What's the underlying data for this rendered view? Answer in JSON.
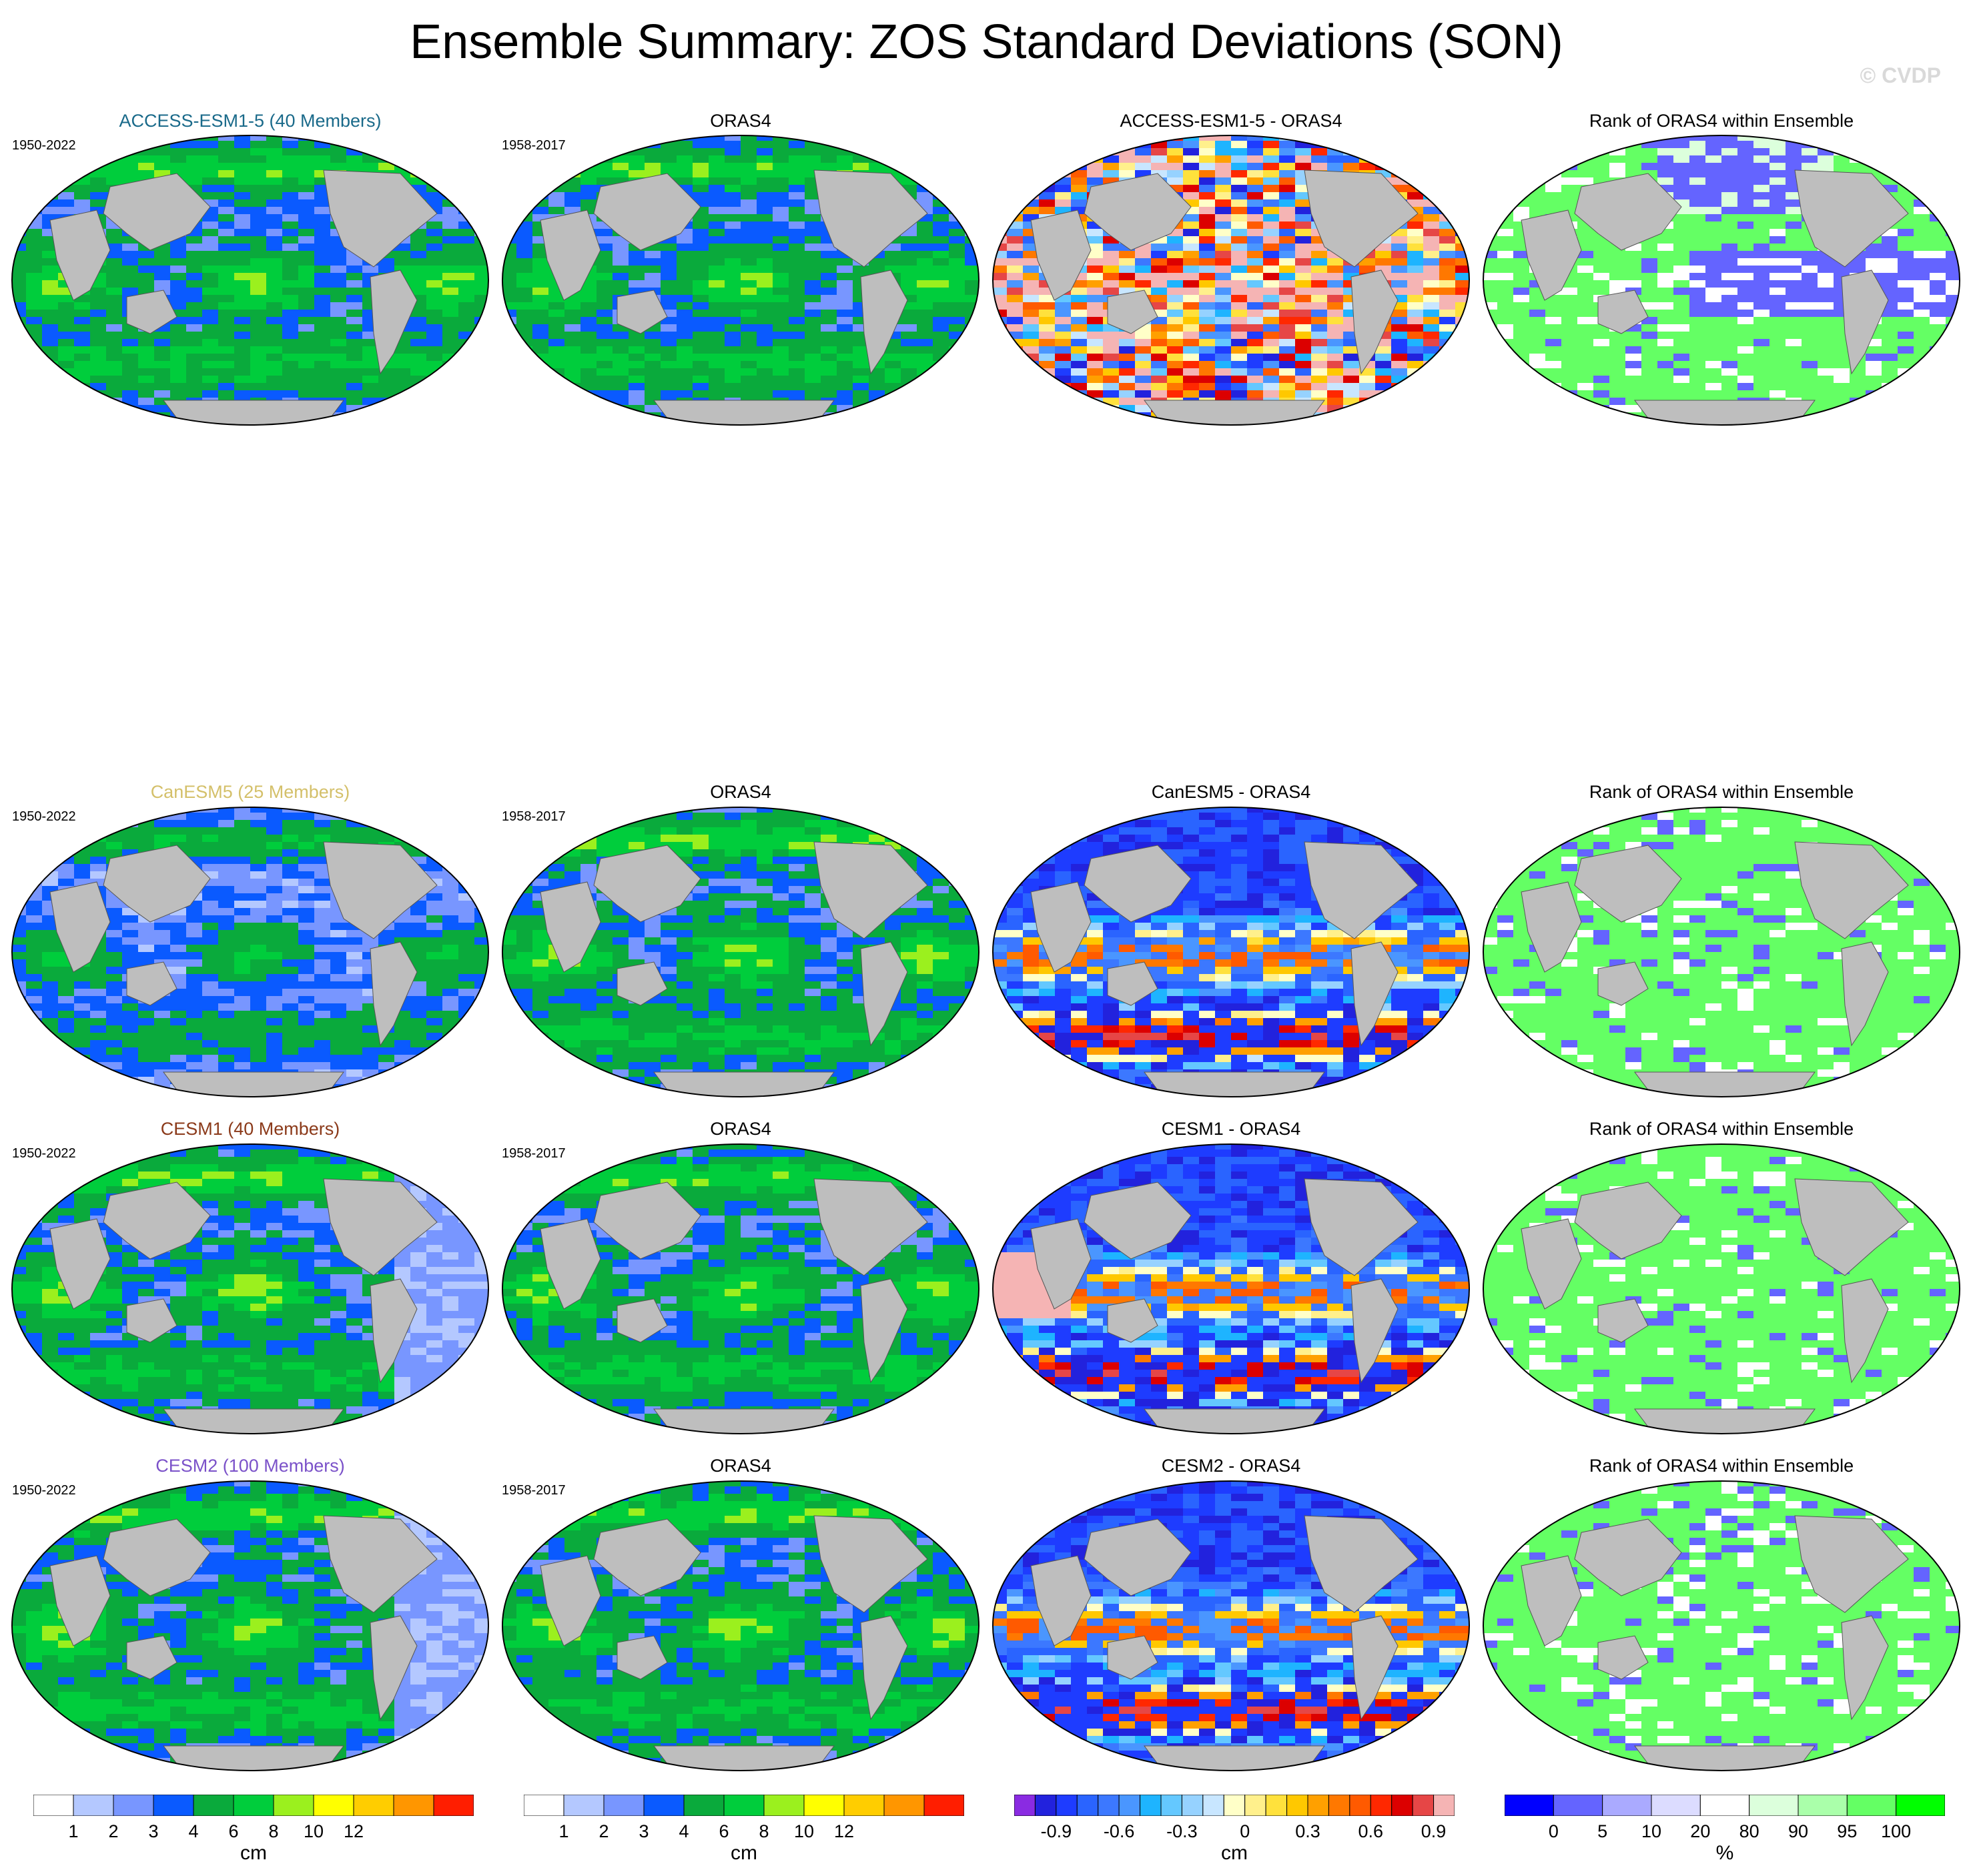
{
  "title": "Ensemble Summary: ZOS Standard Deviations (SON)",
  "copyright": "© CVDP",
  "colors": {
    "land": "#bebebe",
    "model_titles": [
      "#1a6a8a",
      "#d4c06a",
      "#8b3a1a",
      "#7b52c9"
    ]
  },
  "chart_data": {
    "type": "heatmap",
    "layout": "4 rows x 4 columns of global maps (Robinson-like projection)",
    "rows": [
      {
        "model_title": "ACCESS-ESM1-5 (40 Members)",
        "model_period": "1950-2022",
        "obs_title": "ORAS4",
        "obs_period": "1958-2017",
        "diff_title": "ACCESS-ESM1-5 - ORAS4",
        "rank_title": "Rank of ORAS4 within Ensemble"
      },
      {
        "model_title": "CanESM5 (25 Members)",
        "model_period": "1950-2022",
        "obs_title": "ORAS4",
        "obs_period": "1958-2017",
        "diff_title": "CanESM5 - ORAS4",
        "rank_title": "Rank of ORAS4 within Ensemble"
      },
      {
        "model_title": "CESM1 (40 Members)",
        "model_period": "1950-2022",
        "obs_title": "ORAS4",
        "obs_period": "1958-2017",
        "diff_title": "CESM1 - ORAS4",
        "rank_title": "Rank of ORAS4 within Ensemble"
      },
      {
        "model_title": "CESM2 (100 Members)",
        "model_period": "1950-2022",
        "obs_title": "ORAS4",
        "obs_period": "1958-2017",
        "diff_title": "CESM2 - ORAS4",
        "rank_title": "Rank of ORAS4 within Ensemble"
      }
    ],
    "colorbars": [
      {
        "unit": "cm",
        "ticks": [
          "1",
          "2",
          "3",
          "4",
          "6",
          "8",
          "10",
          "12"
        ],
        "levels": [
          1,
          2,
          3,
          4,
          6,
          8,
          10,
          12
        ],
        "colors": [
          "#ffffff",
          "#b4c8ff",
          "#7896ff",
          "#0a5aff",
          "#0aaa3c",
          "#00cd3c",
          "#9bf01e",
          "#ffff00",
          "#ffcd00",
          "#ff9600",
          "#ff1e00"
        ]
      },
      {
        "unit": "cm",
        "ticks": [
          "1",
          "2",
          "3",
          "4",
          "6",
          "8",
          "10",
          "12"
        ],
        "levels": [
          1,
          2,
          3,
          4,
          6,
          8,
          10,
          12
        ],
        "colors": [
          "#ffffff",
          "#b4c8ff",
          "#7896ff",
          "#0a5aff",
          "#0aaa3c",
          "#00cd3c",
          "#9bf01e",
          "#ffff00",
          "#ffcd00",
          "#ff9600",
          "#ff1e00"
        ]
      },
      {
        "unit": "cm",
        "ticks": [
          "-0.9",
          "-0.6",
          "-0.3",
          "0",
          "0.3",
          "0.6",
          "0.9"
        ],
        "levels": [
          -1.0,
          -0.9,
          -0.8,
          -0.7,
          -0.6,
          -0.5,
          -0.4,
          -0.3,
          -0.2,
          -0.1,
          0,
          0.1,
          0.2,
          0.3,
          0.4,
          0.5,
          0.6,
          0.7,
          0.8,
          0.9,
          1.0
        ],
        "colors": [
          "#8a2be2",
          "#2222dd",
          "#1e3cff",
          "#2a64ff",
          "#3c78ff",
          "#4a96ff",
          "#1eb4ff",
          "#64c8ff",
          "#96d2ff",
          "#c8e6ff",
          "#ffffc8",
          "#fff08c",
          "#ffe13c",
          "#ffc800",
          "#ffa000",
          "#ff7800",
          "#ff5a00",
          "#ff2800",
          "#dc0000",
          "#e64646",
          "#f5b4b4"
        ]
      },
      {
        "unit": "%",
        "ticks": [
          "0",
          "5",
          "10",
          "20",
          "80",
          "90",
          "95",
          "100"
        ],
        "levels": [
          0,
          5,
          10,
          20,
          80,
          90,
          95,
          100
        ],
        "colors": [
          "#0000ff",
          "#6464ff",
          "#aaaaff",
          "#dcdcff",
          "#ffffff",
          "#dcffdc",
          "#aaffaa",
          "#64ff64",
          "#00ff00"
        ]
      }
    ]
  }
}
